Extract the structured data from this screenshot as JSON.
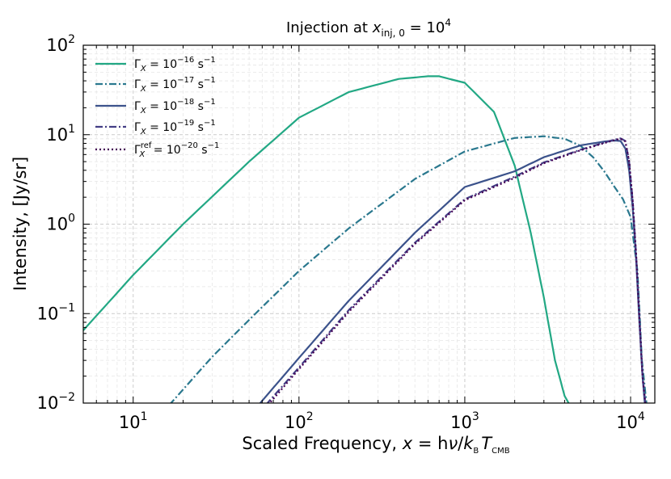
{
  "chart_data": {
    "type": "line",
    "title": "Injection at x_inj,0 = 10^4",
    "title_parts": {
      "prefix": "Injection at ",
      "var": "x",
      "sub": "inj, 0",
      "eq": " = 10",
      "sup": "4"
    },
    "xlabel": "Scaled Frequency, x = hν/k_B T_CMB",
    "xlabel_parts": {
      "prefix": "Scaled Frequency, ",
      "x": "x",
      "eq": " = h",
      "nu": "ν",
      "slash": "/",
      "k": "k",
      "ksub": "B",
      "T": "T",
      "Tsub": "CMB"
    },
    "ylabel": "Intensity, [Jy/sr]",
    "xscale": "log",
    "yscale": "log",
    "xlim": [
      5,
      14000
    ],
    "ylim": [
      0.01,
      100
    ],
    "grid": true,
    "legend_position": "top-left",
    "x_ticks": [
      {
        "value": 10,
        "base": "10",
        "exp": "1"
      },
      {
        "value": 100,
        "base": "10",
        "exp": "2"
      },
      {
        "value": 1000,
        "base": "10",
        "exp": "3"
      },
      {
        "value": 10000,
        "base": "10",
        "exp": "4"
      }
    ],
    "y_ticks": [
      {
        "value": 0.01,
        "base": "10",
        "exp": "−2"
      },
      {
        "value": 0.1,
        "base": "10",
        "exp": "−1"
      },
      {
        "value": 1,
        "base": "10",
        "exp": "0"
      },
      {
        "value": 10,
        "base": "10",
        "exp": "1"
      },
      {
        "value": 100,
        "base": "10",
        "exp": "2"
      }
    ],
    "series": [
      {
        "name": "Γx = 10^-16 s^-1",
        "label": {
          "sym": "Γ",
          "sub": "X",
          "sup": "",
          "eq": " = 10",
          "exp": "−16",
          "unit": " s",
          "uexp": "−1"
        },
        "color": "#22a884",
        "dash": "solid",
        "x": [
          5,
          10,
          20,
          50,
          100,
          200,
          400,
          600,
          700,
          1000,
          1500,
          2000,
          2500,
          3000,
          3500,
          4000,
          4300
        ],
        "y": [
          0.065,
          0.27,
          1.0,
          5.0,
          15.5,
          30,
          42,
          45,
          45,
          38,
          18,
          4.5,
          0.8,
          0.15,
          0.03,
          0.012,
          0.0095
        ]
      },
      {
        "name": "Γx = 10^-17 s^-1",
        "label": {
          "sym": "Γ",
          "sub": "X",
          "sup": "",
          "eq": " = 10",
          "exp": "−17",
          "unit": " s",
          "uexp": "−1"
        },
        "color": "#2a788e",
        "dash": "dashdot",
        "x": [
          16.5,
          30,
          50,
          100,
          200,
          500,
          1000,
          2000,
          3000,
          4000,
          5000,
          6000,
          7000,
          8000,
          9000,
          10000,
          11000,
          11700,
          12500
        ],
        "y": [
          0.0095,
          0.033,
          0.085,
          0.3,
          0.9,
          3.2,
          6.5,
          9.2,
          9.6,
          9.0,
          7.5,
          5.5,
          3.8,
          2.6,
          1.9,
          1.2,
          0.3,
          0.03,
          0.0095
        ]
      },
      {
        "name": "Γx = 10^-18 s^-1",
        "label": {
          "sym": "Γ",
          "sub": "X",
          "sup": "",
          "eq": " = 10",
          "exp": "−18",
          "unit": " s",
          "uexp": "−1"
        },
        "color": "#3b528b",
        "dash": "solid",
        "x": [
          57,
          100,
          200,
          500,
          1000,
          2000,
          3000,
          5000,
          7000,
          8000,
          8700,
          9300,
          9800,
          10300,
          10800,
          11300,
          11800,
          12200
        ],
        "y": [
          0.0095,
          0.032,
          0.14,
          0.8,
          2.6,
          3.9,
          5.6,
          7.6,
          8.4,
          8.6,
          8.5,
          7.0,
          4.0,
          1.5,
          0.4,
          0.08,
          0.02,
          0.0095
        ]
      },
      {
        "name": "Γx = 10^-19 s^-1",
        "label": {
          "sym": "Γ",
          "sub": "X",
          "sup": "",
          "eq": " = 10",
          "exp": "−19",
          "unit": " s",
          "uexp": "−1"
        },
        "color": "#433e85",
        "dash": "dashdot",
        "x": [
          63,
          100,
          200,
          500,
          1000,
          2000,
          3000,
          5000,
          7000,
          8000,
          8700,
          9300,
          9800,
          10300,
          10800,
          11300,
          11800,
          12300
        ],
        "y": [
          0.0095,
          0.025,
          0.11,
          0.62,
          1.9,
          3.4,
          4.9,
          6.8,
          8.2,
          8.8,
          9.1,
          8.5,
          5.0,
          1.8,
          0.45,
          0.09,
          0.02,
          0.0095
        ]
      },
      {
        "name": "Γx^ref = 10^-20 s^-1",
        "label": {
          "sym": "Γ",
          "sub": "X",
          "sup": "ref",
          "eq": " = 10",
          "exp": "−20",
          "unit": " s",
          "uexp": "−1"
        },
        "color": "#440154",
        "dash": "dotted",
        "x": [
          65,
          100,
          200,
          500,
          1000,
          2000,
          3000,
          5000,
          7000,
          8000,
          8700,
          9300,
          9800,
          10300,
          10800,
          11300,
          11800,
          12300
        ],
        "y": [
          0.0095,
          0.024,
          0.105,
          0.6,
          1.85,
          3.3,
          4.8,
          6.7,
          8.1,
          8.7,
          9.0,
          8.4,
          5.0,
          1.8,
          0.45,
          0.09,
          0.02,
          0.0095
        ]
      }
    ]
  }
}
